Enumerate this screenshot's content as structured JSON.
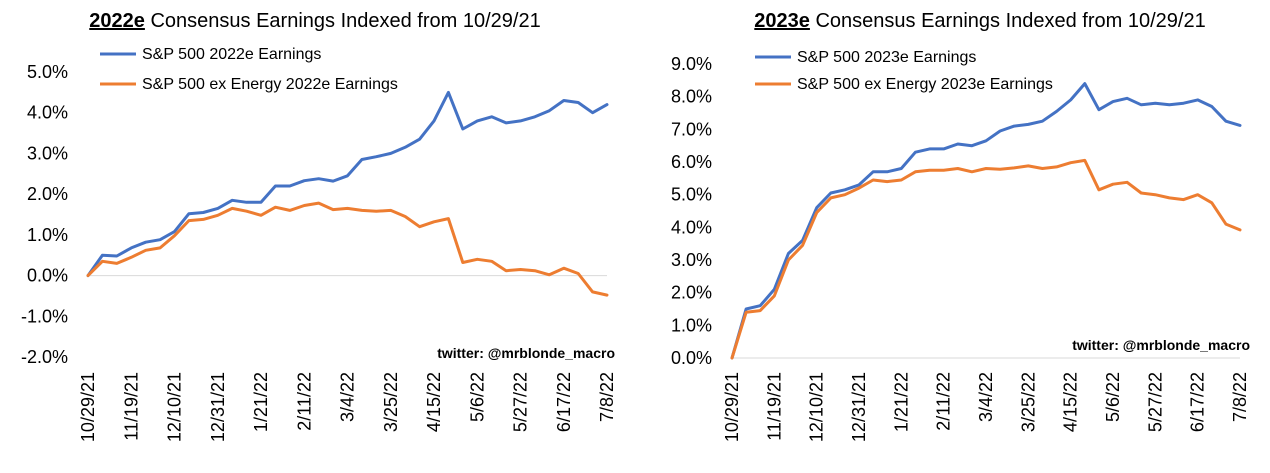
{
  "chart_data": [
    {
      "type": "line",
      "title_bold": "2022e",
      "title_rest": " Consensus Earnings Indexed from 10/29/21",
      "annotation": "twitter: @mrblonde_macro",
      "ylim": [
        -0.02,
        0.05
      ],
      "y_ticks": [
        {
          "v": 0.05,
          "label": "5.0%"
        },
        {
          "v": 0.04,
          "label": "4.0%"
        },
        {
          "v": 0.03,
          "label": "3.0%"
        },
        {
          "v": 0.02,
          "label": "2.0%"
        },
        {
          "v": 0.01,
          "label": "1.0%"
        },
        {
          "v": 0.0,
          "label": "0.0%"
        },
        {
          "v": -0.01,
          "label": "-1.0%"
        },
        {
          "v": -0.02,
          "label": "-2.0%"
        }
      ],
      "x_labels": [
        "10/29/21",
        "11/19/21",
        "12/10/21",
        "12/31/21",
        "1/21/22",
        "2/11/22",
        "3/4/22",
        "3/25/22",
        "4/15/22",
        "5/6/22",
        "5/27/22",
        "6/17/22",
        "7/8/22"
      ],
      "x_label_positions": [
        0,
        3,
        6,
        9,
        12,
        15,
        18,
        21,
        24,
        27,
        30,
        33,
        36
      ],
      "grid": false,
      "series": [
        {
          "name": "S&P 500 2022e Earnings",
          "color": "#4472C4",
          "values": [
            0.0,
            0.005,
            0.0048,
            0.0068,
            0.0082,
            0.0088,
            0.0108,
            0.0152,
            0.0155,
            0.0165,
            0.0185,
            0.018,
            0.018,
            0.022,
            0.022,
            0.0233,
            0.0238,
            0.0232,
            0.0245,
            0.0285,
            0.0292,
            0.03,
            0.0315,
            0.0335,
            0.038,
            0.045,
            0.036,
            0.038,
            0.039,
            0.0375,
            0.038,
            0.039,
            0.0405,
            0.043,
            0.0425,
            0.04,
            0.042
          ]
        },
        {
          "name": "S&P 500 ex Energy 2022e Earnings",
          "color": "#ED7D31",
          "values": [
            0.0,
            0.0035,
            0.003,
            0.0045,
            0.0062,
            0.0068,
            0.0098,
            0.0135,
            0.0138,
            0.0148,
            0.0165,
            0.0158,
            0.0148,
            0.0168,
            0.016,
            0.0172,
            0.0178,
            0.0162,
            0.0165,
            0.016,
            0.0158,
            0.016,
            0.0145,
            0.012,
            0.0132,
            0.014,
            0.0032,
            0.004,
            0.0035,
            0.0012,
            0.0015,
            0.0012,
            0.0002,
            0.0018,
            0.0005,
            -0.004,
            -0.0048
          ]
        }
      ]
    },
    {
      "type": "line",
      "title_bold": "2023e",
      "title_rest": " Consensus Earnings Indexed from 10/29/21",
      "annotation": "twitter: @mrblonde_macro",
      "ylim": [
        0.0,
        0.09
      ],
      "y_ticks": [
        {
          "v": 0.09,
          "label": "9.0%"
        },
        {
          "v": 0.08,
          "label": "8.0%"
        },
        {
          "v": 0.07,
          "label": "7.0%"
        },
        {
          "v": 0.06,
          "label": "6.0%"
        },
        {
          "v": 0.05,
          "label": "5.0%"
        },
        {
          "v": 0.04,
          "label": "4.0%"
        },
        {
          "v": 0.03,
          "label": "3.0%"
        },
        {
          "v": 0.02,
          "label": "2.0%"
        },
        {
          "v": 0.01,
          "label": "1.0%"
        },
        {
          "v": 0.0,
          "label": "0.0%"
        }
      ],
      "x_labels": [
        "10/29/21",
        "11/19/21",
        "12/10/21",
        "12/31/21",
        "1/21/22",
        "2/11/22",
        "3/4/22",
        "3/25/22",
        "4/15/22",
        "5/6/22",
        "5/27/22",
        "6/17/22",
        "7/8/22"
      ],
      "x_label_positions": [
        0,
        3,
        6,
        9,
        12,
        15,
        18,
        21,
        24,
        27,
        30,
        33,
        36
      ],
      "grid": false,
      "series": [
        {
          "name": "S&P 500 2023e Earnings",
          "color": "#4472C4",
          "values": [
            0.0,
            0.015,
            0.016,
            0.021,
            0.032,
            0.036,
            0.046,
            0.0505,
            0.0515,
            0.053,
            0.057,
            0.057,
            0.058,
            0.063,
            0.064,
            0.064,
            0.0655,
            0.065,
            0.0665,
            0.0695,
            0.071,
            0.0715,
            0.0725,
            0.0755,
            0.079,
            0.084,
            0.076,
            0.0785,
            0.0795,
            0.0775,
            0.078,
            0.0775,
            0.078,
            0.079,
            0.077,
            0.0725,
            0.0712
          ]
        },
        {
          "name": "S&P 500 ex Energy 2023e Earnings",
          "color": "#ED7D31",
          "values": [
            0.0,
            0.014,
            0.0145,
            0.019,
            0.03,
            0.0345,
            0.0445,
            0.049,
            0.05,
            0.052,
            0.0545,
            0.054,
            0.0545,
            0.057,
            0.0575,
            0.0575,
            0.058,
            0.057,
            0.058,
            0.0578,
            0.0582,
            0.0588,
            0.058,
            0.0585,
            0.0598,
            0.0605,
            0.0515,
            0.0532,
            0.0538,
            0.0505,
            0.05,
            0.049,
            0.0485,
            0.05,
            0.0475,
            0.041,
            0.0392
          ]
        }
      ]
    }
  ]
}
